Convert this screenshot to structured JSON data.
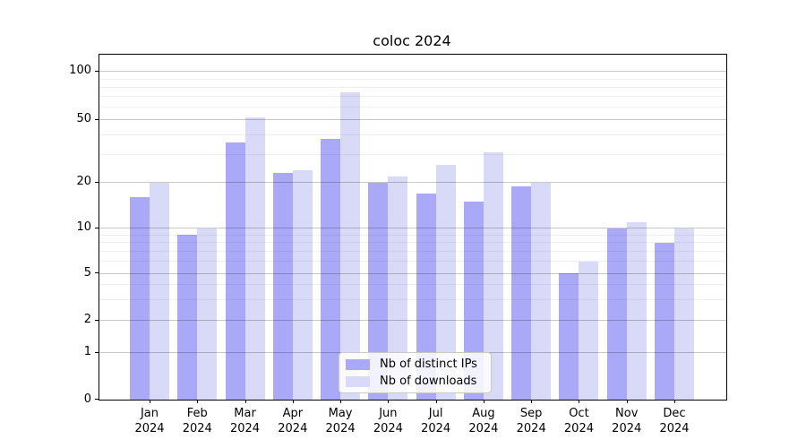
{
  "chart_data": {
    "type": "bar",
    "title": "coloc 2024",
    "categories": [
      "Jan",
      "Feb",
      "Mar",
      "Apr",
      "May",
      "Jun",
      "Jul",
      "Aug",
      "Sep",
      "Oct",
      "Nov",
      "Dec"
    ],
    "year_label": "2024",
    "series": [
      {
        "name": "Nb of distinct IPs",
        "color": "#a9a9f7",
        "values": [
          16,
          9,
          36,
          23,
          38,
          20,
          17,
          15,
          19,
          5,
          10,
          8
        ]
      },
      {
        "name": "Nb of downloads",
        "color": "#d9d9f8",
        "values": [
          20,
          10,
          52,
          24,
          74,
          22,
          26,
          31,
          20,
          6,
          11,
          10
        ]
      }
    ],
    "yscale": "symlog",
    "ylim": [
      0,
      128
    ],
    "y_major_ticks": [
      0,
      1,
      2,
      5,
      10,
      20,
      50,
      100
    ],
    "y_minor_ticks": [
      3,
      4,
      6,
      7,
      8,
      9,
      30,
      40,
      60,
      70,
      80,
      90
    ],
    "grid": "on",
    "legend": {
      "position": "lower center",
      "entries": [
        "Nb of distinct IPs",
        "Nb of downloads"
      ]
    }
  }
}
